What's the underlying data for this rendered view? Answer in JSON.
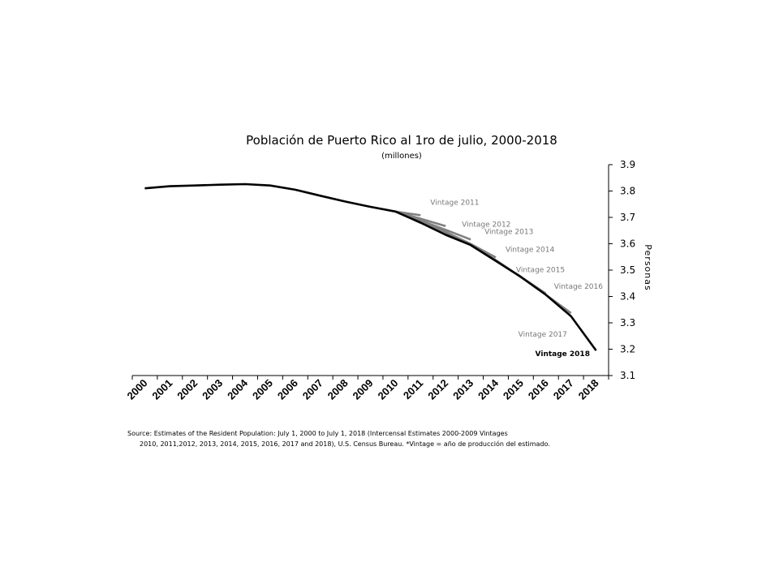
{
  "chart_data": {
    "type": "line",
    "title": "Población de Puerto Rico al 1ro de julio, 2000-2018",
    "subtitle": "(millones)",
    "ylabel": "Personas",
    "ylim": [
      3.1,
      3.9
    ],
    "yticks": [
      "3.1",
      "3.2",
      "3.3",
      "3.4",
      "3.5",
      "3.6",
      "3.7",
      "3.8",
      "3.9"
    ],
    "y_axis_position": "right",
    "grid": false,
    "categories": [
      "2000",
      "2001",
      "2002",
      "2003",
      "2004",
      "2005",
      "2006",
      "2007",
      "2008",
      "2009",
      "2010",
      "2011",
      "2012",
      "2013",
      "2014",
      "2015",
      "2016",
      "2017",
      "2018"
    ],
    "series": [
      {
        "name": "Vintage 2018",
        "color": "#000000",
        "values": [
          3.81,
          3.818,
          3.821,
          3.824,
          3.826,
          3.821,
          3.805,
          3.782,
          3.76,
          3.74,
          3.722,
          3.68,
          3.634,
          3.595,
          3.535,
          3.474,
          3.406,
          3.325,
          3.195
        ]
      },
      {
        "name": "Vintage 2011",
        "color": "#808080",
        "values": [
          null,
          null,
          null,
          null,
          null,
          null,
          null,
          null,
          null,
          null,
          3.722,
          3.708,
          null,
          null,
          null,
          null,
          null,
          null,
          null
        ]
      },
      {
        "name": "Vintage 2012",
        "color": "#808080",
        "values": [
          null,
          null,
          null,
          null,
          null,
          null,
          null,
          null,
          null,
          null,
          3.722,
          3.695,
          3.667,
          null,
          null,
          null,
          null,
          null,
          null
        ]
      },
      {
        "name": "Vintage 2013",
        "color": "#808080",
        "values": [
          null,
          null,
          null,
          null,
          null,
          null,
          null,
          null,
          null,
          null,
          3.722,
          3.688,
          3.653,
          3.616,
          null,
          null,
          null,
          null,
          null
        ]
      },
      {
        "name": "Vintage 2014",
        "color": "#808080",
        "values": [
          null,
          null,
          null,
          null,
          null,
          null,
          null,
          null,
          null,
          null,
          3.722,
          3.684,
          3.645,
          3.599,
          3.548,
          null,
          null,
          null,
          null
        ]
      },
      {
        "name": "Vintage 2015",
        "color": "#808080",
        "values": [
          null,
          null,
          null,
          null,
          null,
          null,
          null,
          null,
          null,
          null,
          3.722,
          3.682,
          3.641,
          3.596,
          3.538,
          3.474,
          null,
          null,
          null
        ]
      },
      {
        "name": "Vintage 2016",
        "color": "#808080",
        "values": [
          null,
          null,
          null,
          null,
          null,
          null,
          null,
          null,
          null,
          null,
          3.722,
          3.681,
          3.638,
          3.595,
          3.536,
          3.474,
          3.411,
          null,
          null
        ]
      },
      {
        "name": "Vintage 2017",
        "color": "#808080",
        "values": [
          null,
          null,
          null,
          null,
          null,
          null,
          null,
          null,
          null,
          null,
          3.722,
          3.68,
          3.635,
          3.595,
          3.535,
          3.474,
          3.406,
          3.337,
          null
        ]
      }
    ]
  },
  "source_lines": [
    "Source: Estimates of the Resident Population: July 1, 2000 to July 1, 2018 (Intercensal Estimates 2000-2009 Vintages",
    "2010, 2011,2012, 2013, 2014, 2015, 2016, 2017 and 2018), U.S. Census Bureau. *Vintage = año de producción del estimado."
  ]
}
